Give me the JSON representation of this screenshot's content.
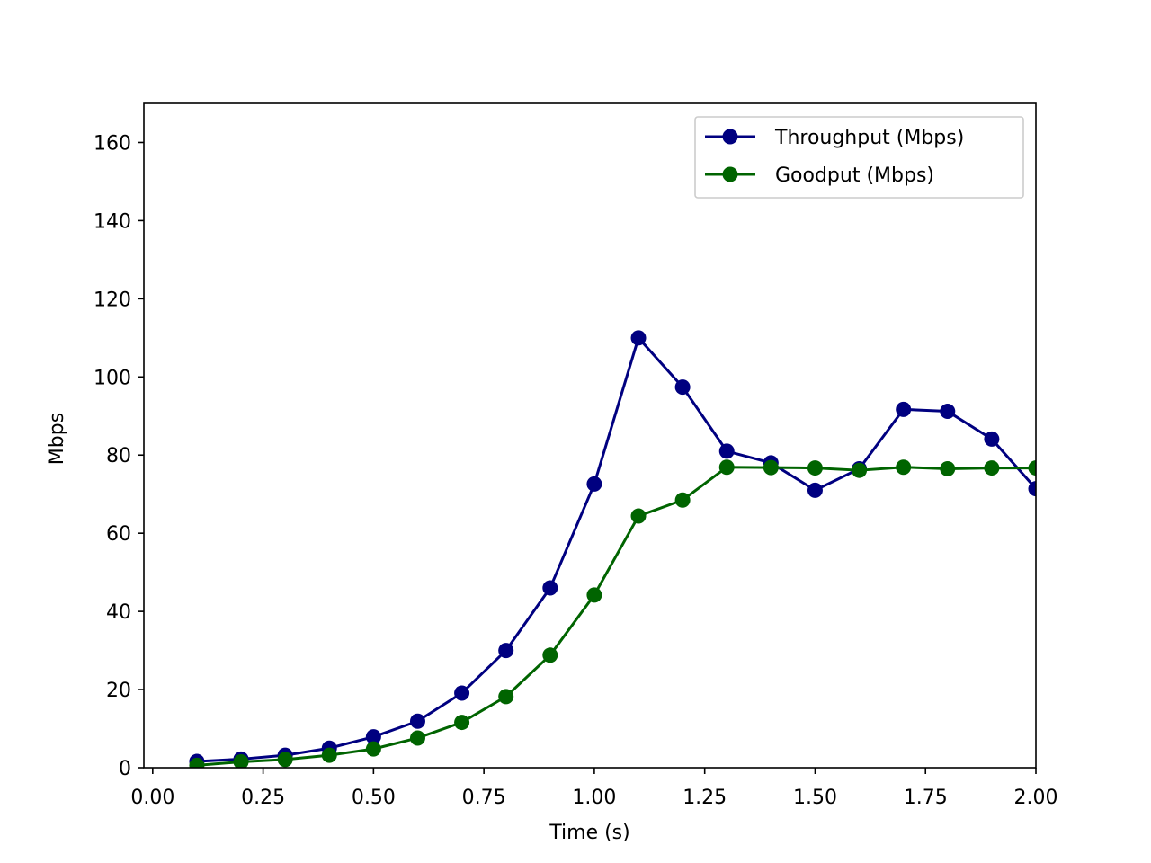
{
  "chart_data": {
    "type": "line",
    "title": "",
    "xlabel": "Time (s)",
    "ylabel": "Mbps",
    "xlim": [
      -0.02,
      2.0
    ],
    "ylim": [
      0,
      170
    ],
    "xticks": [
      0.0,
      0.25,
      0.5,
      0.75,
      1.0,
      1.25,
      1.5,
      1.75,
      2.0
    ],
    "xtick_labels": [
      "0.00",
      "0.25",
      "0.50",
      "0.75",
      "1.00",
      "1.25",
      "1.50",
      "1.75",
      "2.00"
    ],
    "yticks": [
      0,
      20,
      40,
      60,
      80,
      100,
      120,
      140,
      160
    ],
    "ytick_labels": [
      "0",
      "20",
      "40",
      "60",
      "80",
      "100",
      "120",
      "140",
      "160"
    ],
    "grid": false,
    "legend_position": "top-right",
    "x": [
      0.1,
      0.2,
      0.3,
      0.4,
      0.5,
      0.6,
      0.7,
      0.8,
      0.9,
      1.0,
      1.1,
      1.2,
      1.3,
      1.4,
      1.5,
      1.6,
      1.7,
      1.8,
      1.9,
      2.0
    ],
    "series": [
      {
        "name": "Throughput (Mbps)",
        "color": "#000080",
        "marker": "circle",
        "values": [
          1.6,
          2.2,
          3.2,
          5.0,
          7.9,
          11.9,
          19.1,
          30.0,
          46.0,
          72.6,
          110.0,
          97.4,
          81.0,
          78.0,
          71.0,
          76.5,
          91.7,
          91.2,
          84.1,
          71.4
        ]
      },
      {
        "name": "Goodput (Mbps)",
        "color": "#006400",
        "marker": "circle",
        "values": [
          0.6,
          1.5,
          2.1,
          3.2,
          4.8,
          7.6,
          11.6,
          18.2,
          28.8,
          44.2,
          64.4,
          68.5,
          76.9,
          76.8,
          76.7,
          76.1,
          76.9,
          76.5,
          76.7,
          76.7
        ]
      }
    ]
  }
}
